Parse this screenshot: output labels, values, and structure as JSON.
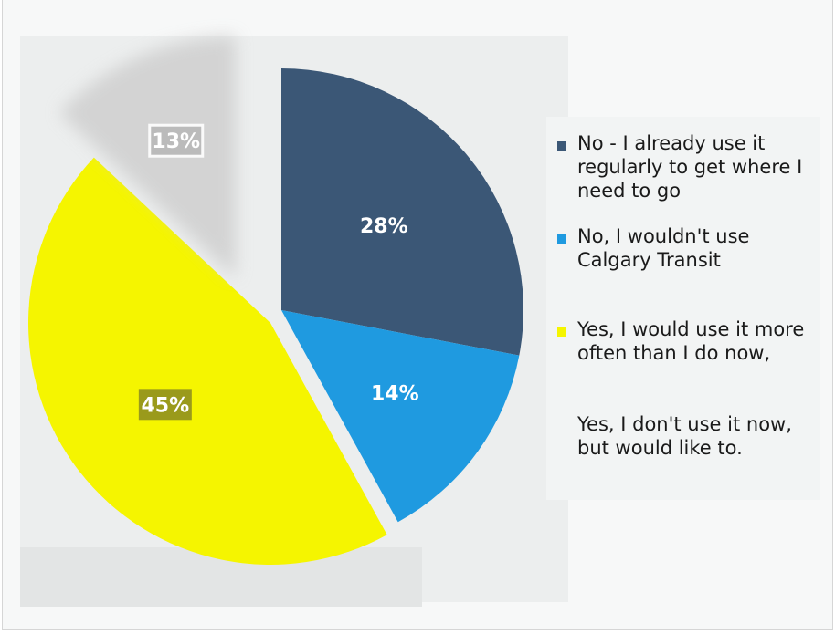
{
  "chart_data": {
    "type": "pie",
    "title": "",
    "slices": [
      {
        "label": "No - I already use it regularly to get where I need to go",
        "value": 28,
        "display": "28%",
        "color": "#3b5776",
        "exploded": false
      },
      {
        "label": "No, I wouldn't use Calgary Transit",
        "value": 14,
        "display": "14%",
        "color": "#1f9ae0",
        "exploded": false
      },
      {
        "label": "Yes, I would use it more often than I do now,",
        "value": 45,
        "display": "45%",
        "color": "#f5f500",
        "exploded": true
      },
      {
        "label": "Yes, I don't use it now, but would like to.",
        "value": 13,
        "display": "13%",
        "color": "#cfcfcf",
        "exploded": true
      }
    ],
    "legend_position": "right"
  },
  "legend": {
    "items": [
      {
        "label": "No - I already use it regularly to get where I need to go",
        "color": "#3b5776"
      },
      {
        "label": "No, I wouldn't use Calgary Transit",
        "color": "#1f9ae0"
      },
      {
        "label": "Yes, I would use it more often than I do now,",
        "color": "#f5f500"
      },
      {
        "label": "Yes, I don't use it now, but would like to.",
        "color": ""
      }
    ]
  }
}
